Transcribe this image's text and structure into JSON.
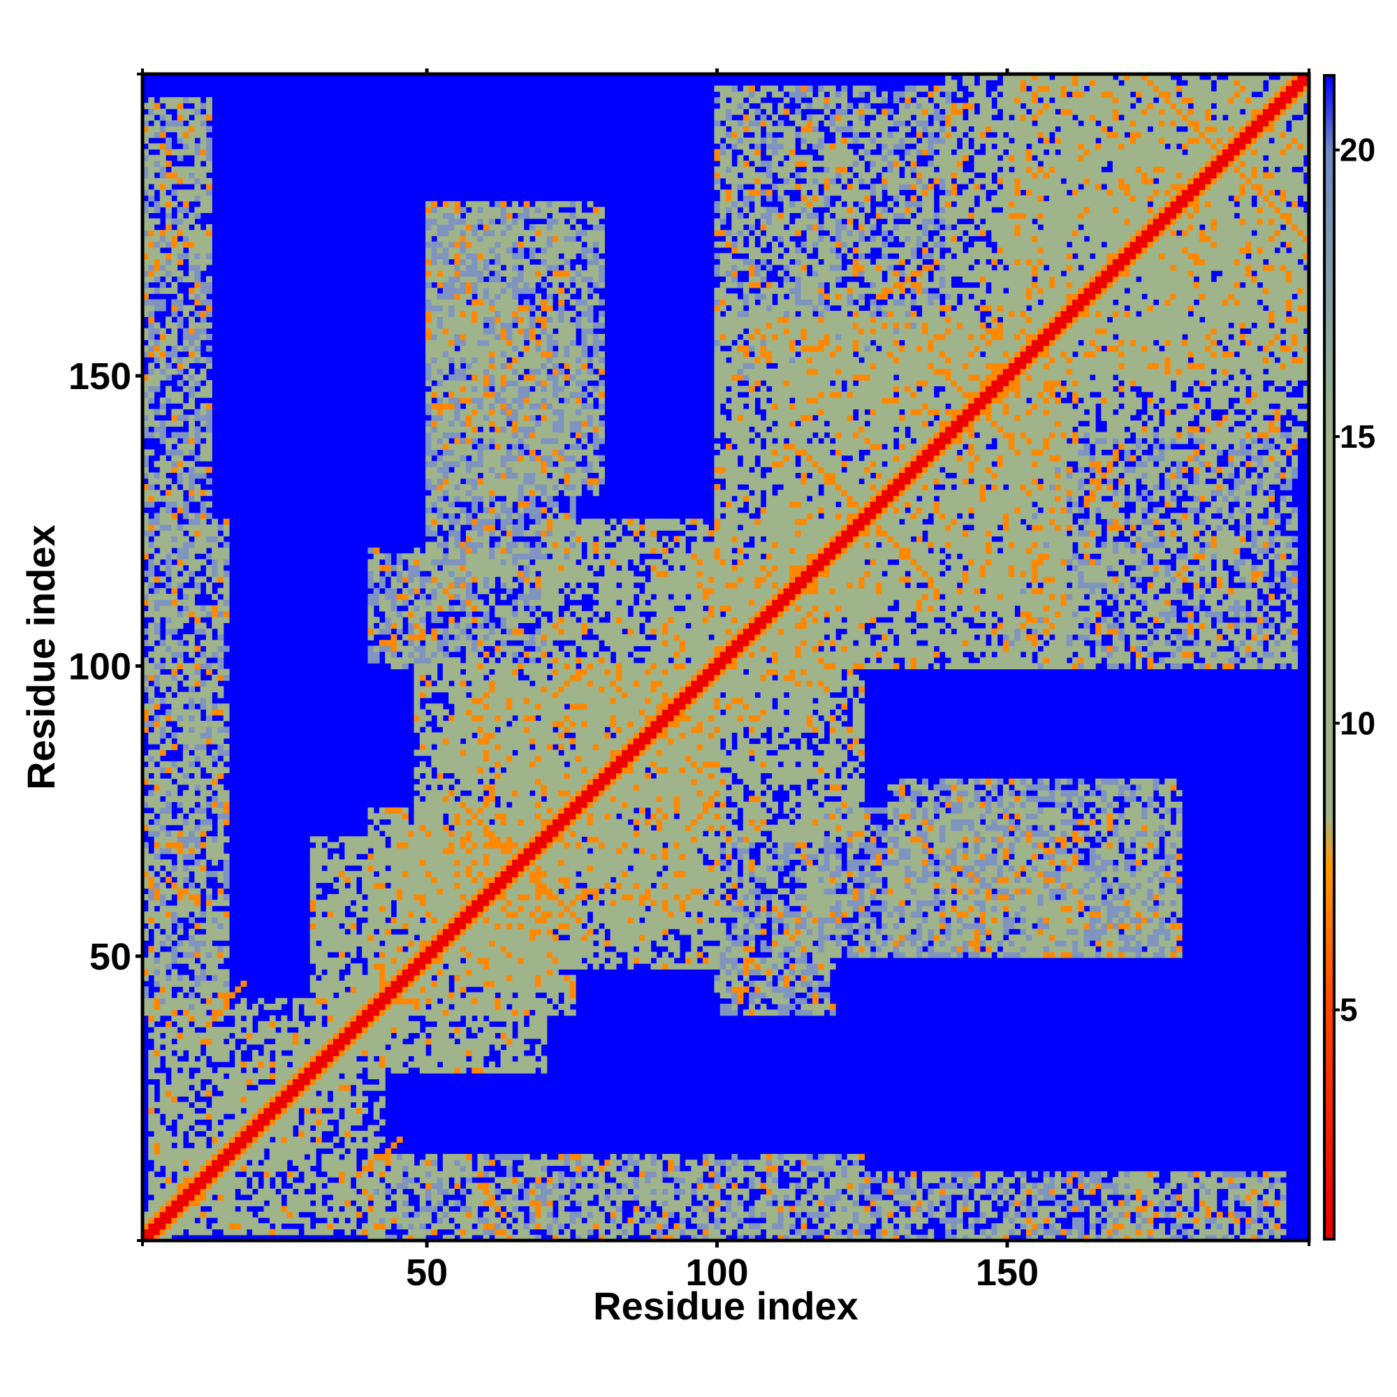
{
  "chart_data": {
    "type": "heatmap",
    "title": "",
    "xlabel": "Residue index",
    "ylabel": "Residue index",
    "n_residues": 202,
    "xlim": [
      1,
      202
    ],
    "ylim": [
      1,
      202
    ],
    "xticks": [
      50,
      100,
      150
    ],
    "yticks": [
      50,
      100,
      150
    ],
    "grid": false,
    "legend": "colorbar right",
    "colorbar": {
      "range": [
        1,
        21.3
      ],
      "ticks": [
        5,
        10,
        15,
        20
      ],
      "stops": [
        {
          "value": 1,
          "color": "#e60000"
        },
        {
          "value": 5,
          "color": "#ff4400"
        },
        {
          "value": 7.5,
          "color": "#ff9900"
        },
        {
          "value": 8.4,
          "color": "#9fb48a"
        },
        {
          "value": 15,
          "color": "#9fb48a"
        },
        {
          "value": 20,
          "color": "#6c8cc4"
        },
        {
          "value": 21.3,
          "color": "#0000ff"
        }
      ]
    },
    "colors": {
      "background": "#0000ff",
      "diagonal": "#ee0000",
      "near": "#ff8800",
      "contact": "#9fb48a",
      "mid": "#7f95c0"
    },
    "values_description": "Pairwise residue distance map; symmetric; distance ~0-4 on diagonal, red/orange for close contacts, sage green for medium distances, blue (>21) for distant pairs.",
    "contact_blocks": [
      {
        "x": [
          2,
          42
        ],
        "y": [
          2,
          42
        ],
        "level": 9
      },
      {
        "x": [
          30,
          75
        ],
        "y": [
          40,
          70
        ],
        "level": 10
      },
      {
        "x": [
          40,
          70
        ],
        "y": [
          30,
          75
        ],
        "level": 10
      },
      {
        "x": [
          48,
          100
        ],
        "y": [
          55,
          100
        ],
        "level": 10
      },
      {
        "x": [
          55,
          100
        ],
        "y": [
          48,
          100
        ],
        "level": 10
      },
      {
        "x": [
          70,
          120
        ],
        "y": [
          90,
          125
        ],
        "level": 10
      },
      {
        "x": [
          90,
          125
        ],
        "y": [
          70,
          120
        ],
        "level": 10
      },
      {
        "x": [
          100,
          160
        ],
        "y": [
          110,
          160
        ],
        "level": 10
      },
      {
        "x": [
          110,
          160
        ],
        "y": [
          100,
          160
        ],
        "level": 10
      },
      {
        "x": [
          140,
          202
        ],
        "y": [
          150,
          202
        ],
        "level": 10
      },
      {
        "x": [
          150,
          202
        ],
        "y": [
          140,
          202
        ],
        "level": 10
      },
      {
        "x": [
          1,
          15
        ],
        "y": [
          40,
          125
        ],
        "level": 12
      },
      {
        "x": [
          40,
          125
        ],
        "y": [
          1,
          15
        ],
        "level": 12
      },
      {
        "x": [
          1,
          12
        ],
        "y": [
          170,
          198
        ],
        "level": 12
      },
      {
        "x": [
          170,
          198
        ],
        "y": [
          1,
          12
        ],
        "level": 12
      },
      {
        "x": [
          50,
          80
        ],
        "y": [
          130,
          180
        ],
        "level": 13
      },
      {
        "x": [
          130,
          180
        ],
        "y": [
          50,
          80
        ],
        "level": 13
      },
      {
        "x": [
          100,
          140
        ],
        "y": [
          150,
          200
        ],
        "level": 12
      },
      {
        "x": [
          150,
          200
        ],
        "y": [
          100,
          140
        ],
        "level": 12
      },
      {
        "x": [
          100,
          120
        ],
        "y": [
          40,
          70
        ],
        "level": 13
      },
      {
        "x": [
          40,
          70
        ],
        "y": [
          100,
          120
        ],
        "level": 13
      },
      {
        "x": [
          115,
          160
        ],
        "y": [
          50,
          75
        ],
        "level": 14
      },
      {
        "x": [
          50,
          75
        ],
        "y": [
          115,
          160
        ],
        "level": 14
      },
      {
        "x": [
          160,
          180
        ],
        "y": [
          50,
          65
        ],
        "level": 14
      },
      {
        "x": [
          50,
          65
        ],
        "y": [
          160,
          180
        ],
        "level": 14
      },
      {
        "x": [
          120,
          175
        ],
        "y": [
          1,
          12
        ],
        "level": 13
      },
      {
        "x": [
          1,
          12
        ],
        "y": [
          120,
          175
        ],
        "level": 13
      }
    ],
    "anti_diagonal_contacts": [
      {
        "center": [
          66,
          66
        ],
        "half_length": 10,
        "value": 6
      },
      {
        "center": [
          126,
          126
        ],
        "half_length": 10,
        "value": 6
      },
      {
        "center": [
          188,
          188
        ],
        "half_length": 14,
        "value": 6
      },
      {
        "center": [
          145,
          145
        ],
        "half_length": 6,
        "value": 6
      }
    ],
    "parallel_contacts": [
      {
        "from": [
          5,
          63
        ],
        "to": [
          10,
          59
        ],
        "value": 6
      },
      {
        "from": [
          60,
          3
        ],
        "to": [
          64,
          1
        ],
        "value": 6
      },
      {
        "from": [
          38,
          12
        ],
        "to": [
          45,
          18
        ],
        "value": 6
      },
      {
        "from": [
          12,
          38
        ],
        "to": [
          18,
          45
        ],
        "value": 6
      },
      {
        "from": [
          72,
          95
        ],
        "to": [
          78,
          100
        ],
        "value": 6
      },
      {
        "from": [
          95,
          72
        ],
        "to": [
          100,
          78
        ],
        "value": 6
      },
      {
        "from": [
          128,
          164
        ],
        "to": [
          138,
          170
        ],
        "value": 6
      },
      {
        "from": [
          164,
          128
        ],
        "to": [
          170,
          138
        ],
        "value": 6
      }
    ]
  }
}
